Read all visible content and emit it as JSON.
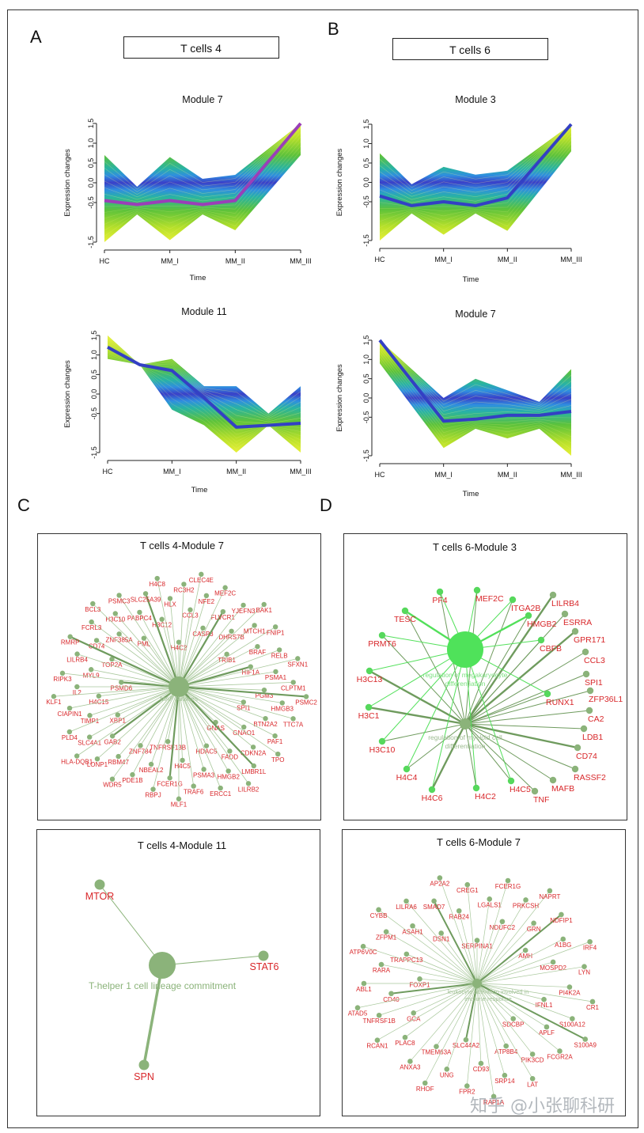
{
  "panels": {
    "A": {
      "letter": "A",
      "title": "T cells 4"
    },
    "B": {
      "letter": "B",
      "title": "T cells 6"
    },
    "C": {
      "letter": "C"
    },
    "D": {
      "letter": "D"
    }
  },
  "axis_common": {
    "xlabel": "Time",
    "ylabel": "Expression changes",
    "time_points": [
      "HC",
      "MM_I",
      "MM_II",
      "MM_III"
    ],
    "yticks": [
      "1.5",
      "1.0",
      "0.5",
      "0.0",
      "-0.5",
      "-1.5"
    ],
    "ylim": [
      -1.5,
      1.5
    ]
  },
  "chart_data": [
    {
      "type": "line",
      "panel": "A",
      "title": "Module 7",
      "categories": [
        "HC",
        "MM_I",
        "MM_II",
        "MM_III"
      ],
      "x": [
        0,
        0.5,
        1,
        1.5,
        2,
        3
      ],
      "series": [
        {
          "name": "core",
          "values": [
            -0.45,
            -0.55,
            -0.45,
            -0.55,
            -0.45,
            1.5
          ]
        },
        {
          "name": "upper",
          "values": [
            0.7,
            -0.1,
            0.65,
            0.1,
            0.2,
            1.5
          ]
        },
        {
          "name": "lower",
          "values": [
            -1.5,
            -0.8,
            -1.45,
            -0.8,
            -1.2,
            0.7
          ]
        }
      ],
      "xlabel": "Time",
      "ylabel": "Expression changes",
      "ylim": [
        -1.5,
        1.5
      ]
    },
    {
      "type": "line",
      "panel": "A",
      "title": "Module 11",
      "categories": [
        "HC",
        "MM_I",
        "MM_II",
        "MM_III"
      ],
      "x": [
        0,
        0.5,
        1,
        1.5,
        2,
        2.5,
        3
      ],
      "series": [
        {
          "name": "core",
          "values": [
            1.2,
            0.75,
            0.6,
            -0.1,
            -0.85,
            -0.8,
            -0.75
          ]
        },
        {
          "name": "upper",
          "values": [
            1.5,
            0.75,
            0.9,
            0.2,
            0.2,
            -0.5,
            0.2
          ]
        },
        {
          "name": "lower",
          "values": [
            0.9,
            0.75,
            -0.4,
            -0.8,
            -1.5,
            -0.8,
            -1.5
          ]
        }
      ],
      "xlabel": "Time",
      "ylabel": "Expression changes",
      "ylim": [
        -1.5,
        1.5
      ]
    },
    {
      "type": "line",
      "panel": "B",
      "title": "Module 3",
      "categories": [
        "HC",
        "MM_I",
        "MM_II",
        "MM_III"
      ],
      "x": [
        0,
        0.5,
        1,
        1.5,
        2,
        3
      ],
      "series": [
        {
          "name": "core",
          "values": [
            -0.35,
            -0.6,
            -0.5,
            -0.6,
            -0.4,
            1.5
          ]
        },
        {
          "name": "upper",
          "values": [
            0.75,
            -0.05,
            0.4,
            0.2,
            0.3,
            1.5
          ]
        },
        {
          "name": "lower",
          "values": [
            -1.5,
            -0.8,
            -1.35,
            -0.8,
            -1.25,
            0.8
          ]
        }
      ],
      "xlabel": "Time",
      "ylabel": "Expression changes",
      "ylim": [
        -1.5,
        1.5
      ]
    },
    {
      "type": "line",
      "panel": "B",
      "title": "Module 7",
      "categories": [
        "HC",
        "MM_I",
        "MM_II",
        "MM_III"
      ],
      "x": [
        0,
        1,
        1.5,
        2,
        2.5,
        3
      ],
      "series": [
        {
          "name": "core",
          "values": [
            1.5,
            -0.6,
            -0.55,
            -0.45,
            -0.45,
            -0.35
          ]
        },
        {
          "name": "upper",
          "values": [
            1.5,
            0.0,
            0.5,
            0.2,
            -0.1,
            0.75
          ]
        },
        {
          "name": "lower",
          "values": [
            0.9,
            -1.3,
            -0.8,
            -1.05,
            -0.8,
            -1.5
          ]
        }
      ],
      "xlabel": "Time",
      "ylabel": "Expression changes",
      "ylim": [
        -1.5,
        1.5
      ]
    }
  ],
  "networks": {
    "c1": {
      "title": "T cells 4-Module 7",
      "center_label": "MAP Kinases",
      "genes": [
        "H4C2",
        "GNAS",
        "PSMD6",
        "TRIB1",
        "TNFRSF13B",
        "PML",
        "SPI1",
        "XBP1",
        "CASP3",
        "HDAC5",
        "TOP2A",
        "HIF1A",
        "ZNF784",
        "H3C12",
        "GNAO1",
        "H4C15",
        "DHRS7B",
        "H4C5",
        "ZNF385A",
        "PGM3",
        "GAB2",
        "CCL3",
        "FADD",
        "MYL9",
        "BRAF",
        "NBEAL2",
        "PABPC4",
        "BTN2A2",
        "TIMP1",
        "FLVCR1",
        "PSMA3",
        "CD74",
        "PSMA1",
        "RBM47",
        "HLX",
        "CDKN2A",
        "IL2",
        "MTCH1",
        "FCER1G",
        "H3C10",
        "HMGB3",
        "SLC4A1",
        "NFE2",
        "HMGB2",
        "LILRB4",
        "RELB",
        "PDE1B",
        "SLC25A39",
        "PAF1",
        "CIAPIN1",
        "YJEFN3",
        "TRAF6",
        "FCRL3",
        "CLPTM1",
        "LONP1",
        "RC3H2",
        "LMBR1L",
        "RIPK3",
        "FNIP1",
        "RBPJ",
        "PSMC3",
        "TTC7A",
        "PLD4",
        "MEF2C",
        "ERCC1",
        "RMRP",
        "SFXN1",
        "WDR5",
        "H4C8",
        "TPO",
        "KLF1",
        "BAK1",
        "MLF1",
        "BCL3",
        "PSMC2",
        "HLA-DQB1",
        "CLEC4E",
        "LILRB2"
      ]
    },
    "d1": {
      "title": "T cells 6-Module 3",
      "hub1": "regulation of megakaryocyte differentiation",
      "hub2": "regulation of myeloid cell differentiation",
      "genes": [
        "PF4",
        "MEF2C",
        "ITGA2B",
        "LILRB4",
        "TESC",
        "HMGB2",
        "ESRRA",
        "GPR171",
        "PRMT6",
        "CBFB",
        "CCL3",
        "H3C13",
        "SPI1",
        "RUNX1",
        "ZFP36L1",
        "H3C1",
        "CA2",
        "LDB1",
        "H3C10",
        "CD74",
        "RASSF2",
        "H4C4",
        "MAFB",
        "H4C6",
        "H4C2",
        "H4C5",
        "TNF"
      ]
    },
    "c2": {
      "title": "T cells 4-Module 11",
      "hub": "T-helper 1 cell lineage commitment",
      "genes": [
        "MTOR",
        "STAT6",
        "SPN"
      ]
    },
    "d2": {
      "title": "T cells 6-Module 7",
      "hub": "leukocyte activation involved in immune response",
      "genes": [
        "SERPINA1",
        "SDCBP",
        "FOXP1",
        "AMH",
        "SLC44A2",
        "DSN1",
        "IFNL1",
        "GCA",
        "NDUFC2",
        "ATP8B4",
        "TRAPPC13",
        "MOSPD2",
        "TMEM63A",
        "RAB24",
        "APLF",
        "CD40",
        "GRN",
        "CD93",
        "ASAH1",
        "PI4K2A",
        "PLAC8",
        "LGALS1",
        "PIK3CD",
        "RARA",
        "A1BG",
        "UNG",
        "SMAD7",
        "S100A12",
        "TNFRSF1B",
        "PRKCSH",
        "SRP14",
        "ZFPM1",
        "LYN",
        "ANXA3",
        "CREG1",
        "FCGR2A",
        "ABL1",
        "NDFIP1",
        "FPR2",
        "LILRA6",
        "CR1",
        "RCAN1",
        "FCER1G",
        "LAT",
        "ATP6V0C",
        "IRF4",
        "RHOF",
        "AP2A2",
        "S100A9",
        "ATAD5",
        "NAPRT",
        "RAP1A",
        "CYBB"
      ]
    }
  },
  "watermark": "知乎 @小张聊科研"
}
